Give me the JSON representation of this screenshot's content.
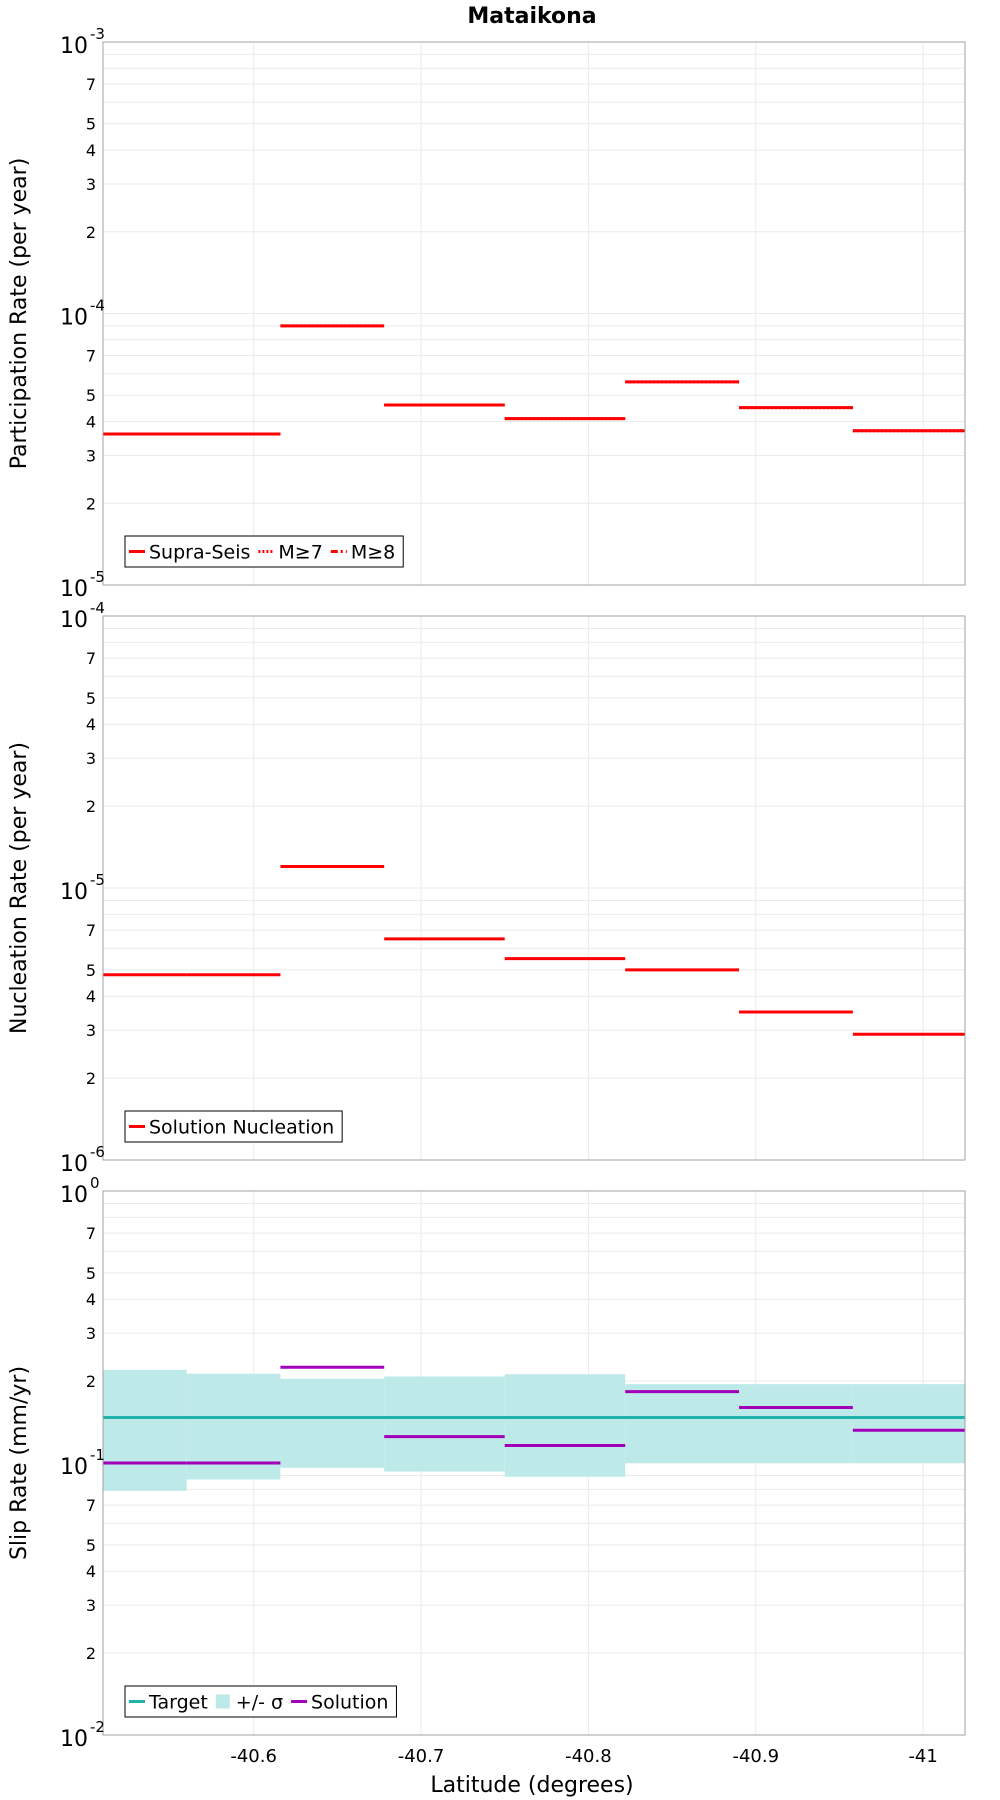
{
  "title": "Mataikona",
  "xlabel": "Latitude (degrees)",
  "chart_data": [
    {
      "type": "line",
      "ylabel": "Participation Rate (per year)",
      "yscale": "log",
      "ylim": [
        1e-05,
        0.001
      ],
      "xlim": [
        -40.51,
        -41.025
      ],
      "grid": true,
      "legend": {
        "placement": "bottom-left",
        "entries": [
          "Supra-Seis",
          "M≥7",
          "M≥8"
        ]
      },
      "series": [
        {
          "name": "Supra-Seis",
          "color": "#ff0000",
          "style": "solid",
          "segments": [
            {
              "x": [
                -40.51,
                -40.56
              ],
              "y": 3.6e-05
            },
            {
              "x": [
                -40.56,
                -40.616
              ],
              "y": 3.6e-05
            },
            {
              "x": [
                -40.616,
                -40.678
              ],
              "y": 9e-05
            },
            {
              "x": [
                -40.678,
                -40.75
              ],
              "y": 4.6e-05
            },
            {
              "x": [
                -40.75,
                -40.822
              ],
              "y": 4.1e-05
            },
            {
              "x": [
                -40.822,
                -40.89
              ],
              "y": 5.6e-05
            },
            {
              "x": [
                -40.89,
                -40.958
              ],
              "y": 4.5e-05
            },
            {
              "x": [
                -40.958,
                -41.025
              ],
              "y": 3.7e-05
            }
          ]
        },
        {
          "name": "M≥7",
          "color": "#ff0000",
          "style": "dotted",
          "segments": [
            {
              "x": [
                -40.51,
                -40.56
              ],
              "y": 3.6e-05
            },
            {
              "x": [
                -40.56,
                -40.616
              ],
              "y": 3.6e-05
            },
            {
              "x": [
                -40.616,
                -40.678
              ],
              "y": 9e-05
            },
            {
              "x": [
                -40.678,
                -40.75
              ],
              "y": 4.6e-05
            },
            {
              "x": [
                -40.75,
                -40.822
              ],
              "y": 4.1e-05
            },
            {
              "x": [
                -40.822,
                -40.89
              ],
              "y": 5.6e-05
            },
            {
              "x": [
                -40.89,
                -40.958
              ],
              "y": 4.5e-05
            },
            {
              "x": [
                -40.958,
                -41.025
              ],
              "y": 3.7e-05
            }
          ]
        },
        {
          "name": "M≥8",
          "color": "#ff0000",
          "style": "dashdot",
          "segments": []
        }
      ]
    },
    {
      "type": "line",
      "ylabel": "Nucleation Rate (per year)",
      "yscale": "log",
      "ylim": [
        1e-06,
        0.0001
      ],
      "xlim": [
        -40.51,
        -41.025
      ],
      "grid": true,
      "legend": {
        "placement": "bottom-left",
        "entries": [
          "Solution Nucleation"
        ]
      },
      "series": [
        {
          "name": "Solution Nucleation",
          "color": "#ff0000",
          "style": "solid",
          "segments": [
            {
              "x": [
                -40.51,
                -40.56
              ],
              "y": 4.8e-06
            },
            {
              "x": [
                -40.56,
                -40.616
              ],
              "y": 4.8e-06
            },
            {
              "x": [
                -40.616,
                -40.678
              ],
              "y": 1.2e-05
            },
            {
              "x": [
                -40.678,
                -40.75
              ],
              "y": 6.5e-06
            },
            {
              "x": [
                -40.75,
                -40.822
              ],
              "y": 5.5e-06
            },
            {
              "x": [
                -40.822,
                -40.89
              ],
              "y": 5e-06
            },
            {
              "x": [
                -40.89,
                -40.958
              ],
              "y": 3.5e-06
            },
            {
              "x": [
                -40.958,
                -41.025
              ],
              "y": 2.9e-06
            }
          ]
        }
      ]
    },
    {
      "type": "line",
      "ylabel": "Slip Rate (mm/yr)",
      "yscale": "log",
      "ylim": [
        0.01,
        1
      ],
      "xlim": [
        -40.51,
        -41.025
      ],
      "grid": true,
      "legend": {
        "placement": "bottom-left",
        "entries": [
          "Target",
          "+/- σ",
          "Solution"
        ]
      },
      "bands": [
        {
          "name": "+/- σ",
          "color": "#bde9e8",
          "segments": [
            {
              "x": [
                -40.51,
                -40.56
              ],
              "low": 0.079,
              "high": 0.22
            },
            {
              "x": [
                -40.56,
                -40.616
              ],
              "low": 0.087,
              "high": 0.213
            },
            {
              "x": [
                -40.616,
                -40.678
              ],
              "low": 0.096,
              "high": 0.204
            },
            {
              "x": [
                -40.678,
                -40.75
              ],
              "low": 0.093,
              "high": 0.208
            },
            {
              "x": [
                -40.75,
                -40.822
              ],
              "low": 0.089,
              "high": 0.212
            },
            {
              "x": [
                -40.822,
                -40.89
              ],
              "low": 0.1,
              "high": 0.195
            },
            {
              "x": [
                -40.89,
                -40.958
              ],
              "low": 0.1,
              "high": 0.195
            },
            {
              "x": [
                -40.958,
                -41.025
              ],
              "low": 0.1,
              "high": 0.195
            }
          ]
        }
      ],
      "series": [
        {
          "name": "Target",
          "color": "#20b2aa",
          "style": "solid",
          "segments": [
            {
              "x": [
                -40.51,
                -41.025
              ],
              "y": 0.147
            }
          ]
        },
        {
          "name": "Solution",
          "color": "#a100b8",
          "style": "solid",
          "segments": [
            {
              "x": [
                -40.51,
                -40.56
              ],
              "y": 0.1
            },
            {
              "x": [
                -40.56,
                -40.616
              ],
              "y": 0.1
            },
            {
              "x": [
                -40.616,
                -40.678
              ],
              "y": 0.225
            },
            {
              "x": [
                -40.678,
                -40.75
              ],
              "y": 0.125
            },
            {
              "x": [
                -40.75,
                -40.822
              ],
              "y": 0.116
            },
            {
              "x": [
                -40.822,
                -40.89
              ],
              "y": 0.183
            },
            {
              "x": [
                -40.89,
                -40.958
              ],
              "y": 0.16
            },
            {
              "x": [
                -40.958,
                -41.025
              ],
              "y": 0.132
            }
          ]
        }
      ]
    }
  ],
  "xticks": [
    -40.6,
    -40.7,
    -40.8,
    -40.9,
    -41
  ],
  "xtick_labels": [
    "-40.6",
    "-40.7",
    "-40.8",
    "-40.9",
    "-41"
  ],
  "ytick_minor_labels": [
    "2",
    "3",
    "4",
    "5",
    "7"
  ],
  "ytick_major": [
    {
      "base": "10",
      "exp": [
        "-3",
        "-4",
        "-5"
      ]
    },
    {
      "base": "10",
      "exp": [
        "-4",
        "-5",
        "-6"
      ]
    },
    {
      "base": "10",
      "exp": [
        "0",
        "-1",
        "-2"
      ]
    }
  ]
}
